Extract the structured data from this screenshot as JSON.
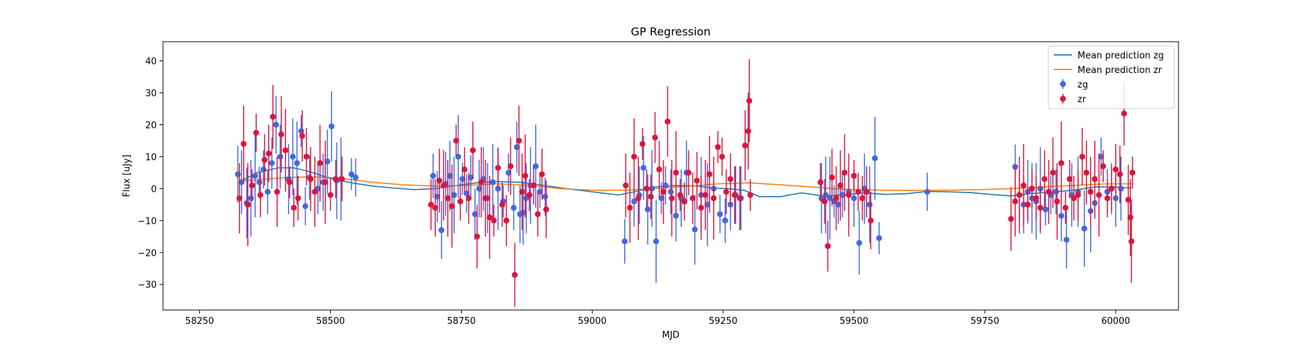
{
  "chart_data": {
    "type": "scatter",
    "title": "GP Regression",
    "xlabel": "MJD",
    "ylabel": "Flux [uJy]",
    "xlim": [
      58180,
      60120
    ],
    "ylim": [
      -38,
      46
    ],
    "x_ticks": [
      58250,
      58500,
      58750,
      59000,
      59250,
      59500,
      59750,
      60000
    ],
    "x_tick_labels": [
      "58250",
      "58500",
      "58750",
      "59000",
      "59250",
      "59500",
      "59750",
      "60000"
    ],
    "y_ticks": [
      -30,
      -20,
      -10,
      0,
      10,
      20,
      30,
      40
    ],
    "y_tick_labels": [
      "−30",
      "−20",
      "−10",
      "0",
      "10",
      "20",
      "30",
      "40"
    ],
    "grid": false,
    "legend": {
      "placement": "upper right",
      "entries": [
        "Mean prediction zg",
        "Mean prediction zr",
        "zg",
        "zr"
      ]
    },
    "series": [
      {
        "name": "Mean prediction zg",
        "kind": "line",
        "color": "#1f77b4",
        "x": [
          58330,
          58360,
          58400,
          58430,
          58460,
          58500,
          58540,
          58580,
          58620,
          58660,
          58700,
          58740,
          58780,
          58820,
          58860,
          58900,
          58950,
          59000,
          59050,
          59080,
          59120,
          59160,
          59200,
          59230,
          59260,
          59290,
          59320,
          59360,
          59400,
          59440,
          59480,
          59520,
          59560,
          59600,
          59640,
          59680,
          59720,
          59760,
          59800,
          59840,
          59880,
          59920,
          59960,
          60000,
          60030
        ],
        "y": [
          2.5,
          5.0,
          6.5,
          6.5,
          5.3,
          3.2,
          1.8,
          0.8,
          0.2,
          -0.3,
          0.0,
          1.0,
          1.8,
          2.2,
          2.0,
          1.2,
          0.0,
          -1.0,
          -2.0,
          -1.0,
          0.5,
          1.0,
          0.8,
          0.2,
          0.0,
          -0.5,
          -2.5,
          -2.5,
          -1.3,
          -2.3,
          -2.0,
          -1.3,
          -1.8,
          -1.6,
          -0.9,
          -1.0,
          -1.2,
          -1.8,
          -2.3,
          -1.5,
          -1.0,
          -0.5,
          0.5,
          0.5,
          0.2
        ]
      },
      {
        "name": "Mean prediction zr",
        "kind": "line",
        "color": "#ff7f0e",
        "x": [
          58330,
          58380,
          58420,
          58460,
          58500,
          58540,
          58580,
          58640,
          58700,
          58760,
          58820,
          58880,
          58940,
          59000,
          59060,
          59120,
          59180,
          59240,
          59300,
          59360,
          59420,
          59460,
          59500,
          59560,
          59620,
          59680,
          59740,
          59800,
          59860,
          59920,
          59980,
          60030
        ],
        "y": [
          2.5,
          3.0,
          3.5,
          3.7,
          3.5,
          2.8,
          2.0,
          1.2,
          0.8,
          1.0,
          1.5,
          1.0,
          0.0,
          -0.5,
          -0.5,
          0.0,
          0.7,
          1.5,
          1.8,
          1.2,
          0.5,
          0.0,
          -0.3,
          -0.5,
          -0.6,
          -0.5,
          -0.3,
          0.0,
          0.5,
          1.0,
          1.5,
          1.5
        ]
      },
      {
        "name": "zg",
        "kind": "errorbar",
        "color": "#4169e1",
        "x": [
          58323,
          58330,
          58340,
          58348,
          58356,
          58364,
          58372,
          58380,
          58388,
          58396,
          58404,
          58420,
          58428,
          58436,
          58444,
          58452,
          58460,
          58476,
          58486,
          58494,
          58502,
          58512,
          58520,
          58540,
          58548,
          58696,
          58704,
          58712,
          58720,
          58728,
          58736,
          58744,
          58752,
          58760,
          58768,
          58776,
          58784,
          58792,
          58800,
          58810,
          58820,
          58830,
          58840,
          58850,
          58856,
          58862,
          58868,
          58874,
          58882,
          58892,
          58900,
          58910,
          59062,
          59080,
          59090,
          59098,
          59106,
          59114,
          59122,
          59132,
          59140,
          59150,
          59160,
          59170,
          59180,
          59196,
          59208,
          59220,
          59232,
          59244,
          59254,
          59264,
          59274,
          59284,
          59438,
          59446,
          59454,
          59462,
          59470,
          59478,
          59490,
          59500,
          59510,
          59520,
          59530,
          59540,
          59548,
          59640,
          59808,
          59816,
          59824,
          59832,
          59840,
          59848,
          59856,
          59866,
          59876,
          59886,
          59896,
          59906,
          59916,
          59928,
          59940,
          59952,
          59960,
          59972,
          59984,
          59992,
          60000,
          60010
        ],
        "y": [
          4.5,
          2.0,
          -4.5,
          -3.0,
          4.0,
          2.0,
          6.0,
          -1.0,
          8.0,
          20.0,
          10.0,
          3.0,
          10.0,
          8.0,
          18.0,
          -5.5,
          3.5,
          0.0,
          2.0,
          8.5,
          19.5,
          2.5,
          3.0,
          4.5,
          3.5,
          4.0,
          -2.5,
          -13.0,
          1.5,
          4.0,
          -2.0,
          10.0,
          3.0,
          -1.5,
          3.5,
          -8.0,
          0.0,
          3.0,
          -3.0,
          2.0,
          0.0,
          -4.0,
          5.0,
          -6.0,
          13.0,
          -8.0,
          -7.5,
          -3.0,
          1.0,
          7.0,
          -1.0,
          -2.5,
          -16.5,
          -4.0,
          -2.0,
          6.5,
          -6.5,
          0.0,
          -16.5,
          -3.0,
          1.0,
          -1.0,
          -8.5,
          -3.0,
          5.0,
          -12.8,
          -2.0,
          -5.0,
          0.0,
          -8.0,
          -10.0,
          -5.0,
          -2.0,
          -3.0,
          -3.0,
          -2.0,
          -3.0,
          -4.0,
          -5.0,
          -2.0,
          -1.0,
          -3.0,
          -17.0,
          0.0,
          -5.0,
          9.5,
          -15.5,
          -1.0,
          6.8,
          -2.0,
          -5.0,
          -1.0,
          -3.0,
          -4.0,
          0.0,
          -6.5,
          -2.0,
          -1.0,
          -8.5,
          -16.0,
          -2.0,
          -1.0,
          -12.5,
          -7.0,
          -4.5,
          10.0,
          -1.0,
          0.0,
          -3.0,
          0.0
        ]
      },
      {
        "name": "zr",
        "kind": "errorbar",
        "color": "#dc143c",
        "x": [
          58326,
          58334,
          58342,
          58350,
          58358,
          58366,
          58374,
          58382,
          58390,
          58398,
          58406,
          58414,
          58422,
          58430,
          58438,
          58446,
          58454,
          58462,
          58470,
          58480,
          58490,
          58500,
          58510,
          58522,
          58692,
          58700,
          58708,
          58716,
          58724,
          58732,
          58740,
          58748,
          58756,
          58764,
          58772,
          58780,
          58788,
          58796,
          58804,
          58812,
          58820,
          58828,
          58836,
          58844,
          58852,
          58860,
          58866,
          58872,
          58880,
          58888,
          58896,
          58904,
          58912,
          59064,
          59072,
          59080,
          59088,
          59096,
          59104,
          59112,
          59120,
          59128,
          59136,
          59144,
          59152,
          59160,
          59168,
          59176,
          59184,
          59192,
          59200,
          59208,
          59216,
          59224,
          59232,
          59240,
          59248,
          59256,
          59264,
          59272,
          59282,
          59292,
          59298,
          59300,
          59302,
          59436,
          59444,
          59450,
          59458,
          59466,
          59474,
          59482,
          59490,
          59500,
          59508,
          59516,
          59524,
          59532,
          59800,
          59808,
          59816,
          59824,
          59832,
          59840,
          59848,
          59856,
          59864,
          59872,
          59880,
          59888,
          59896,
          59904,
          59912,
          59920,
          59928,
          59936,
          59944,
          59952,
          59960,
          59968,
          59976,
          59984,
          59992,
          60000,
          60008,
          60016,
          60024,
          60028,
          60030,
          60032
        ],
        "y": [
          -3.0,
          14.0,
          -5.0,
          1.0,
          17.5,
          -2.0,
          9.0,
          11.0,
          22.5,
          -1.0,
          17.0,
          12.0,
          2.0,
          -6.0,
          -3.0,
          16.5,
          10.0,
          3.0,
          -1.0,
          8.0,
          2.0,
          -2.0,
          3.0,
          3.0,
          -5.0,
          -6.0,
          2.5,
          1.0,
          -3.0,
          -5.5,
          15.0,
          -4.0,
          6.0,
          -3.0,
          12.0,
          -15.0,
          2.0,
          -3.0,
          -9.0,
          -10.0,
          6.5,
          -5.0,
          -10.0,
          7.0,
          -27.0,
          15.0,
          -1.0,
          4.0,
          -2.0,
          1.0,
          -8.0,
          4.5,
          -6.5,
          1.0,
          -6.0,
          10.0,
          -3.0,
          14.0,
          0.0,
          -2.5,
          16.0,
          6.0,
          -1.0,
          21.0,
          -3.0,
          5.0,
          -2.0,
          -4.0,
          5.0,
          -3.0,
          2.5,
          -6.0,
          -2.0,
          4.5,
          -3.0,
          13.0,
          10.0,
          -1.0,
          3.0,
          -2.0,
          -3.0,
          13.5,
          18.0,
          27.5,
          -2.0,
          2.0,
          -4.0,
          -18.0,
          3.5,
          -3.0,
          1.0,
          5.0,
          -2.0,
          4.0,
          -1.0,
          -3.0,
          -1.0,
          -10.0,
          -9.5,
          -4.0,
          -2.0,
          1.0,
          -5.0,
          0.0,
          -3.0,
          -6.0,
          3.0,
          -1.0,
          5.0,
          -4.0,
          8.0,
          -6.0,
          3.0,
          -3.0,
          -2.0,
          10.0,
          5.0,
          -1.0,
          3.0,
          -2.0,
          7.0,
          -3.0,
          0.0,
          6.0,
          4.5,
          23.5,
          -3.5,
          -9.0,
          -16.5,
          5.0
        ]
      }
    ]
  }
}
